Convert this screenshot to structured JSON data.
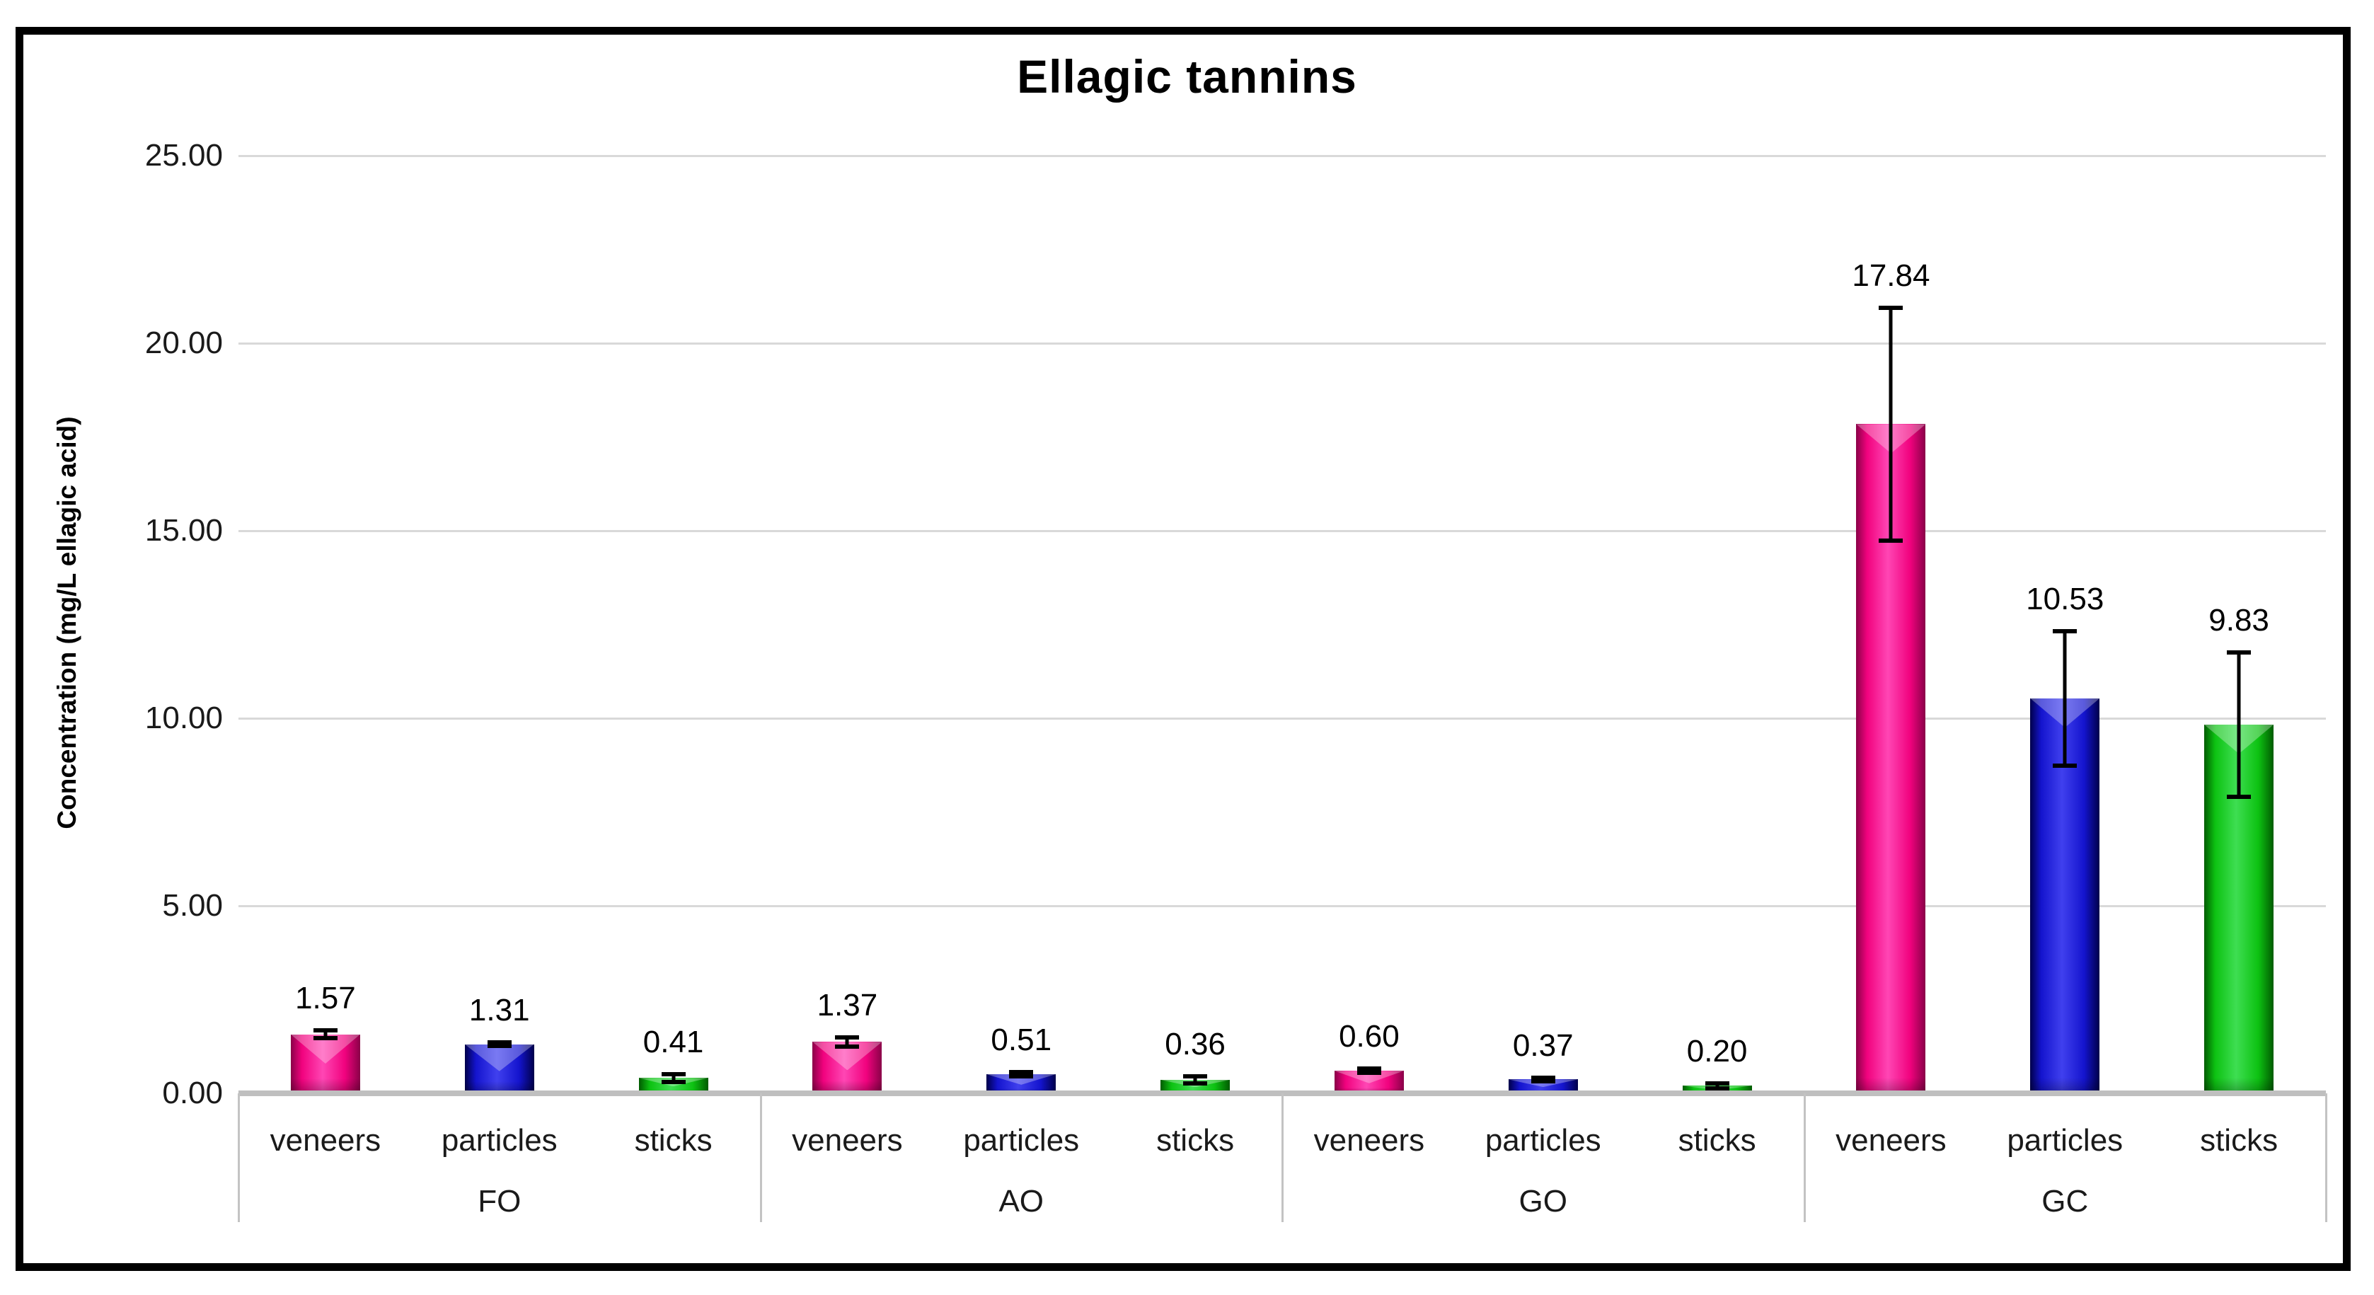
{
  "title": "Ellagic tannins",
  "y_axis": {
    "label": "Concentration (mg/L ellagic acid)",
    "min": 0,
    "max": 25,
    "tick_step": 5,
    "ticks": [
      {
        "value": 25,
        "label": "25.00"
      },
      {
        "value": 20,
        "label": "20.00"
      },
      {
        "value": 15,
        "label": "15.00"
      },
      {
        "value": 10,
        "label": "10.00"
      },
      {
        "value": 5,
        "label": "5.00"
      },
      {
        "value": 0,
        "label": "0.00"
      }
    ]
  },
  "colors": {
    "pink": {
      "main": "#F1027E",
      "light": "#FF46B4",
      "dark": "#8A0148"
    },
    "blue": {
      "main": "#1414CE",
      "light": "#4040EE",
      "dark": "#00004A"
    },
    "green": {
      "main": "#0DC212",
      "light": "#3EDE52",
      "dark": "#015B01"
    },
    "gridline": "#D9D9D9",
    "axis_line": "#BFBFBF",
    "error_bar": "#000000"
  },
  "chart_data": {
    "type": "bar",
    "title": "Ellagic tannins",
    "xlabel": "",
    "ylabel": "Concentration (mg/L ellagic acid)",
    "ylim": [
      0,
      25
    ],
    "ytick_interval": 5,
    "grid": true,
    "legend": "none",
    "groups": [
      "FO",
      "AO",
      "GO",
      "GC"
    ],
    "series_labels": [
      "veneers",
      "particles",
      "sticks"
    ],
    "series": [
      {
        "name": "veneers",
        "color_key": "pink",
        "values": [
          1.57,
          1.37,
          0.6,
          17.84
        ],
        "value_labels": [
          "1.57",
          "1.37",
          "0.60",
          "17.84"
        ],
        "errors": [
          0.1,
          0.13,
          0.06,
          3.1
        ]
      },
      {
        "name": "particles",
        "color_key": "blue",
        "values": [
          1.31,
          0.51,
          0.37,
          10.53
        ],
        "value_labels": [
          "1.31",
          "0.51",
          "0.37",
          "10.53"
        ],
        "errors": [
          0.05,
          0.05,
          0.05,
          1.8
        ]
      },
      {
        "name": "sticks",
        "color_key": "green",
        "values": [
          0.41,
          0.36,
          0.2,
          9.83
        ],
        "value_labels": [
          "0.41",
          "0.36",
          "0.20",
          "9.83"
        ],
        "errors": [
          0.1,
          0.09,
          0.07,
          1.93
        ]
      }
    ]
  }
}
